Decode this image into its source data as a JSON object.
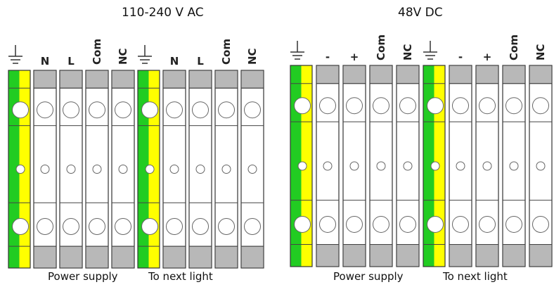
{
  "panels": [
    {
      "title": "110-240 V AC",
      "labels": [
        "N",
        "L",
        "Com",
        "NC",
        "N",
        "L",
        "Com",
        "NC"
      ],
      "footer": [
        "Power supply",
        "To next light"
      ]
    },
    {
      "title": "48V DC",
      "labels": [
        "-",
        "+",
        "Com",
        "NC",
        "-",
        "+",
        "Com",
        "NC"
      ],
      "footer": [
        "Power supply",
        "To next light"
      ]
    }
  ],
  "icons": {
    "ground": "ground-icon"
  },
  "colors": {
    "earth_green": "#22cc22",
    "earth_yellow": "#ffff00",
    "cap_gray": "#b8b8b8",
    "outline": "#333333"
  }
}
